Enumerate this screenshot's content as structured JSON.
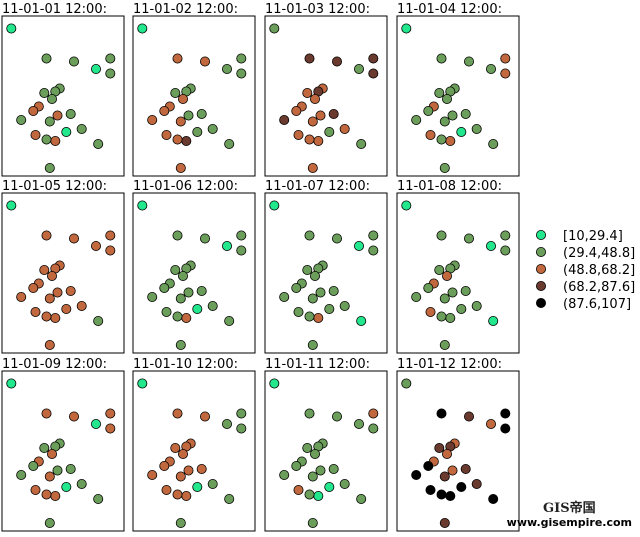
{
  "chart_data": {
    "type": "scatter",
    "legend": {
      "placement": "right",
      "entries": [
        {
          "label": "[10,29.4]",
          "color": "#23e78d"
        },
        {
          "label": "(29.4,48.8]",
          "color": "#6b9e5a"
        },
        {
          "label": "(48.8,68.2]",
          "color": "#c2683e"
        },
        {
          "label": "(68.2,87.6]",
          "color": "#6a3a2e"
        },
        {
          "label": "(87.6,107]",
          "color": "#000000"
        }
      ]
    },
    "x": [
      0.03,
      0.35,
      0.6,
      0.93,
      0.8,
      0.93,
      0.47,
      0.43,
      0.4,
      0.33,
      0.28,
      0.23,
      0.12,
      0.38,
      0.45,
      0.57,
      0.53,
      0.25,
      0.67,
      0.43,
      0.35,
      0.82,
      0.38
    ],
    "y": [
      0.95,
      0.75,
      0.73,
      0.75,
      0.68,
      0.65,
      0.55,
      0.53,
      0.48,
      0.52,
      0.43,
      0.4,
      0.34,
      0.33,
      0.37,
      0.38,
      0.26,
      0.24,
      0.28,
      0.2,
      0.21,
      0.18,
      0.02
    ],
    "panels": [
      {
        "title": "11-01-01 12:00:",
        "classes": [
          0,
          1,
          1,
          1,
          0,
          1,
          1,
          1,
          1,
          1,
          2,
          2,
          1,
          1,
          2,
          1,
          0,
          2,
          1,
          2,
          1,
          1,
          1
        ]
      },
      {
        "title": "11-01-02 12:00:",
        "classes": [
          0,
          2,
          2,
          1,
          1,
          1,
          1,
          1,
          2,
          1,
          2,
          2,
          2,
          2,
          1,
          1,
          1,
          2,
          1,
          3,
          2,
          1,
          2
        ]
      },
      {
        "title": "11-01-03 12:00:",
        "classes": [
          1,
          3,
          3,
          3,
          1,
          3,
          2,
          3,
          2,
          2,
          2,
          2,
          3,
          2,
          2,
          3,
          1,
          2,
          2,
          2,
          2,
          1,
          2
        ]
      },
      {
        "title": "11-01-04 12:00:",
        "classes": [
          0,
          1,
          1,
          2,
          1,
          2,
          1,
          1,
          1,
          1,
          2,
          1,
          1,
          1,
          1,
          1,
          0,
          2,
          1,
          2,
          1,
          1,
          1
        ]
      },
      {
        "title": "11-01-05 12:00:",
        "classes": [
          0,
          2,
          2,
          2,
          2,
          2,
          2,
          2,
          2,
          2,
          2,
          2,
          2,
          2,
          2,
          2,
          2,
          2,
          2,
          2,
          2,
          1,
          2
        ]
      },
      {
        "title": "11-01-06 12:00:",
        "classes": [
          0,
          1,
          1,
          1,
          0,
          1,
          1,
          1,
          1,
          1,
          1,
          1,
          1,
          1,
          1,
          1,
          0,
          1,
          1,
          2,
          1,
          1,
          1
        ]
      },
      {
        "title": "11-01-07 12:00:",
        "classes": [
          0,
          1,
          1,
          1,
          0,
          1,
          1,
          1,
          1,
          1,
          1,
          1,
          1,
          1,
          1,
          1,
          1,
          1,
          1,
          2,
          1,
          0,
          1
        ]
      },
      {
        "title": "11-01-08 12:00:",
        "classes": [
          0,
          1,
          1,
          1,
          0,
          1,
          1,
          1,
          2,
          1,
          2,
          1,
          1,
          1,
          1,
          1,
          1,
          2,
          1,
          1,
          1,
          0,
          1
        ]
      },
      {
        "title": "11-01-09 12:00:",
        "classes": [
          0,
          2,
          2,
          2,
          0,
          2,
          1,
          1,
          2,
          1,
          2,
          1,
          1,
          2,
          1,
          1,
          0,
          2,
          1,
          2,
          2,
          1,
          1
        ]
      },
      {
        "title": "11-01-10 12:00:",
        "classes": [
          0,
          2,
          2,
          1,
          1,
          1,
          2,
          2,
          2,
          2,
          2,
          2,
          2,
          2,
          2,
          2,
          0,
          2,
          1,
          2,
          2,
          1,
          1
        ]
      },
      {
        "title": "11-01-11 12:00:",
        "classes": [
          0,
          1,
          1,
          2,
          1,
          1,
          1,
          1,
          1,
          1,
          1,
          1,
          1,
          1,
          1,
          1,
          0,
          2,
          1,
          0,
          1,
          1,
          1
        ]
      },
      {
        "title": "11-01-12 12:00:",
        "classes": [
          1,
          4,
          3,
          4,
          2,
          4,
          2,
          3,
          2,
          3,
          2,
          4,
          4,
          3,
          2,
          3,
          4,
          4,
          3,
          4,
          4,
          4,
          3
        ]
      }
    ],
    "axes": {
      "xlim": [
        0,
        1
      ],
      "ylim": [
        0,
        1
      ],
      "ticks": false,
      "grid": false
    }
  },
  "watermark": {
    "logo_text": "GIS帝国",
    "url": "www.gisempire.com"
  }
}
